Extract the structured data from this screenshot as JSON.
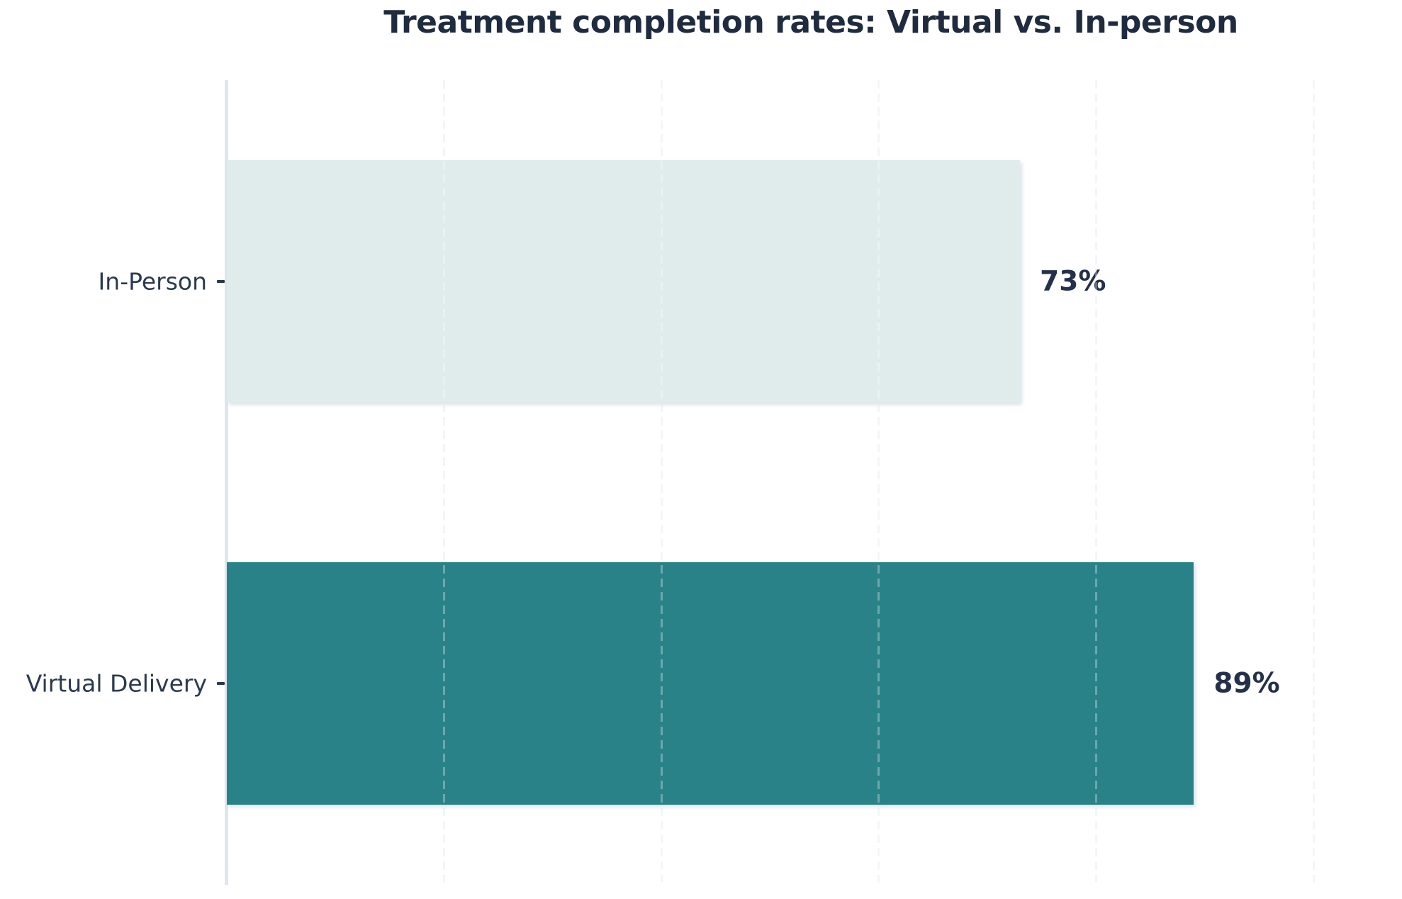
{
  "chart_data": {
    "type": "bar",
    "orientation": "horizontal",
    "title": "Treatment completion rates: Virtual vs. In-person",
    "categories": [
      "In-Person",
      "Virtual Delivery"
    ],
    "values": [
      73,
      89
    ],
    "value_labels": [
      "73%",
      "89%"
    ],
    "xlim": [
      0,
      100
    ],
    "gridline_positions_pct": [
      20,
      40,
      60,
      80,
      100
    ],
    "grid_style": "vertical dashed",
    "legend": "none",
    "bar_colors": [
      "#dfeceb",
      "#2a8289"
    ],
    "colors": {
      "title_text": "#1f2b3e",
      "category_label_text": "#2b3950",
      "value_label_text": "#25304a",
      "axis_line": "#dfe6ee",
      "background": "#ffffff"
    }
  }
}
